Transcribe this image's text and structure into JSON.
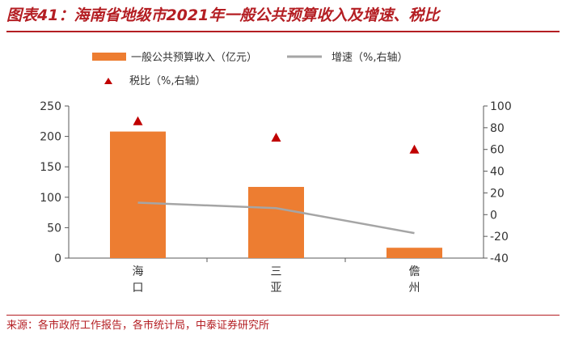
{
  "figure": {
    "title": "图表41：海南省地级市2021年一般公共预算收入及增速、税比",
    "source": "来源：各市政府工作报告，各市统计局，中泰证券研究所"
  },
  "colors": {
    "title": "#b41e23",
    "bar": "#ed7d31",
    "line": "#a5a5a5",
    "marker": "#c00000",
    "axis": "#595959"
  },
  "chart_data": {
    "type": "bar",
    "categories": [
      [
        "海",
        "口"
      ],
      [
        "三",
        "亚"
      ],
      [
        "儋",
        "州"
      ]
    ],
    "series": [
      {
        "name": "一般公共预算收入（亿元）",
        "type": "bar",
        "axis": "left",
        "values": [
          208,
          117,
          17
        ]
      },
      {
        "name": "增速（%,右轴）",
        "type": "line",
        "axis": "right",
        "values": [
          11,
          6,
          -17
        ]
      },
      {
        "name": "税比（%,右轴）",
        "type": "scatter",
        "axis": "right",
        "values": [
          86,
          71,
          60
        ]
      }
    ],
    "y_left": {
      "min": 0,
      "max": 250,
      "ticks": [
        0,
        50,
        100,
        150,
        200,
        250
      ]
    },
    "y_right": {
      "min": -40,
      "max": 100,
      "ticks": [
        -40,
        -20,
        0,
        20,
        40,
        60,
        80,
        100
      ]
    },
    "grid": false,
    "legend": "top"
  }
}
